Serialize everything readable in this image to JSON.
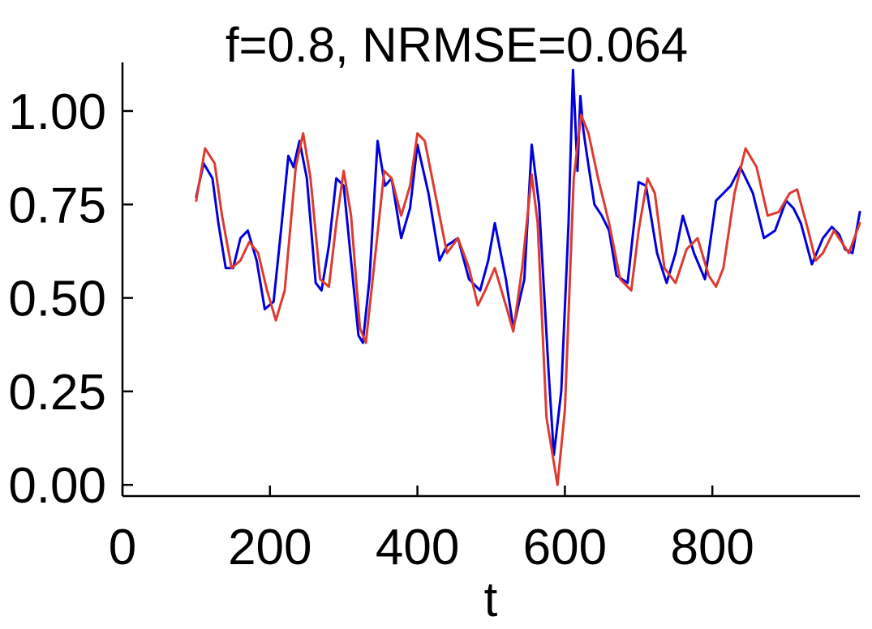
{
  "chart_data": {
    "type": "line",
    "title": "f=0.8, NRMSE=0.064",
    "xlabel": "t",
    "ylabel": "",
    "xlim": [
      0,
      1000
    ],
    "ylim": [
      -0.03,
      1.13
    ],
    "xticks": [
      0,
      200,
      400,
      600,
      800
    ],
    "xtick_labels": [
      "0",
      "200",
      "400",
      "600",
      "800"
    ],
    "yticks": [
      0.0,
      0.25,
      0.5,
      0.75,
      1.0
    ],
    "ytick_labels": [
      "0.00",
      "0.25",
      "0.50",
      "0.75",
      "1.00"
    ],
    "grid": false,
    "legend": "none",
    "series": [
      {
        "color": "#0000dd",
        "x": [
          100,
          110,
          122,
          130,
          140,
          150,
          160,
          170,
          182,
          193,
          205,
          215,
          225,
          232,
          240,
          250,
          262,
          270,
          280,
          290,
          300,
          310,
          320,
          326,
          335,
          346,
          356,
          365,
          378,
          390,
          400,
          415,
          430,
          440,
          455,
          470,
          485,
          496,
          505,
          520,
          530,
          545,
          555,
          565,
          578,
          585,
          595,
          605,
          611,
          617,
          621,
          625,
          630,
          640,
          650,
          660,
          670,
          685,
          700,
          710,
          725,
          738,
          750,
          760,
          775,
          790,
          805,
          825,
          838,
          855,
          870,
          885,
          900,
          910,
          920,
          935,
          950,
          962,
          972,
          980,
          990,
          1000
        ],
        "y": [
          0.77,
          0.86,
          0.82,
          0.7,
          0.58,
          0.58,
          0.66,
          0.68,
          0.6,
          0.47,
          0.49,
          0.68,
          0.88,
          0.85,
          0.92,
          0.82,
          0.54,
          0.52,
          0.64,
          0.82,
          0.8,
          0.6,
          0.4,
          0.38,
          0.55,
          0.92,
          0.8,
          0.82,
          0.66,
          0.74,
          0.91,
          0.78,
          0.6,
          0.64,
          0.66,
          0.55,
          0.52,
          0.6,
          0.7,
          0.55,
          0.42,
          0.55,
          0.91,
          0.75,
          0.3,
          0.08,
          0.25,
          0.7,
          1.11,
          0.84,
          1.04,
          0.95,
          0.88,
          0.75,
          0.72,
          0.68,
          0.56,
          0.54,
          0.81,
          0.8,
          0.62,
          0.54,
          0.62,
          0.72,
          0.62,
          0.55,
          0.76,
          0.8,
          0.85,
          0.78,
          0.66,
          0.68,
          0.76,
          0.74,
          0.7,
          0.59,
          0.66,
          0.69,
          0.67,
          0.63,
          0.62,
          0.73
        ]
      },
      {
        "color": "#dd3b30",
        "x": [
          100,
          112,
          125,
          135,
          148,
          160,
          172,
          184,
          196,
          208,
          220,
          235,
          245,
          255,
          268,
          280,
          290,
          300,
          310,
          322,
          330,
          342,
          355,
          365,
          378,
          390,
          400,
          410,
          422,
          440,
          455,
          470,
          482,
          492,
          505,
          520,
          530,
          542,
          555,
          563,
          575,
          590,
          600,
          612,
          622,
          632,
          645,
          660,
          675,
          690,
          700,
          712,
          722,
          735,
          750,
          765,
          780,
          795,
          805,
          815,
          830,
          845,
          860,
          875,
          890,
          905,
          915,
          930,
          940,
          950,
          965,
          985,
          1000
        ],
        "y": [
          0.76,
          0.9,
          0.86,
          0.72,
          0.58,
          0.6,
          0.65,
          0.62,
          0.52,
          0.44,
          0.52,
          0.85,
          0.94,
          0.82,
          0.55,
          0.53,
          0.7,
          0.84,
          0.72,
          0.42,
          0.38,
          0.6,
          0.84,
          0.82,
          0.72,
          0.8,
          0.94,
          0.92,
          0.8,
          0.62,
          0.66,
          0.58,
          0.48,
          0.52,
          0.58,
          0.48,
          0.41,
          0.58,
          0.83,
          0.7,
          0.18,
          0.0,
          0.2,
          0.82,
          0.99,
          0.94,
          0.82,
          0.7,
          0.55,
          0.52,
          0.68,
          0.82,
          0.78,
          0.58,
          0.54,
          0.63,
          0.66,
          0.56,
          0.53,
          0.58,
          0.78,
          0.9,
          0.85,
          0.72,
          0.73,
          0.78,
          0.79,
          0.68,
          0.6,
          0.62,
          0.68,
          0.62,
          0.7
        ]
      }
    ]
  }
}
